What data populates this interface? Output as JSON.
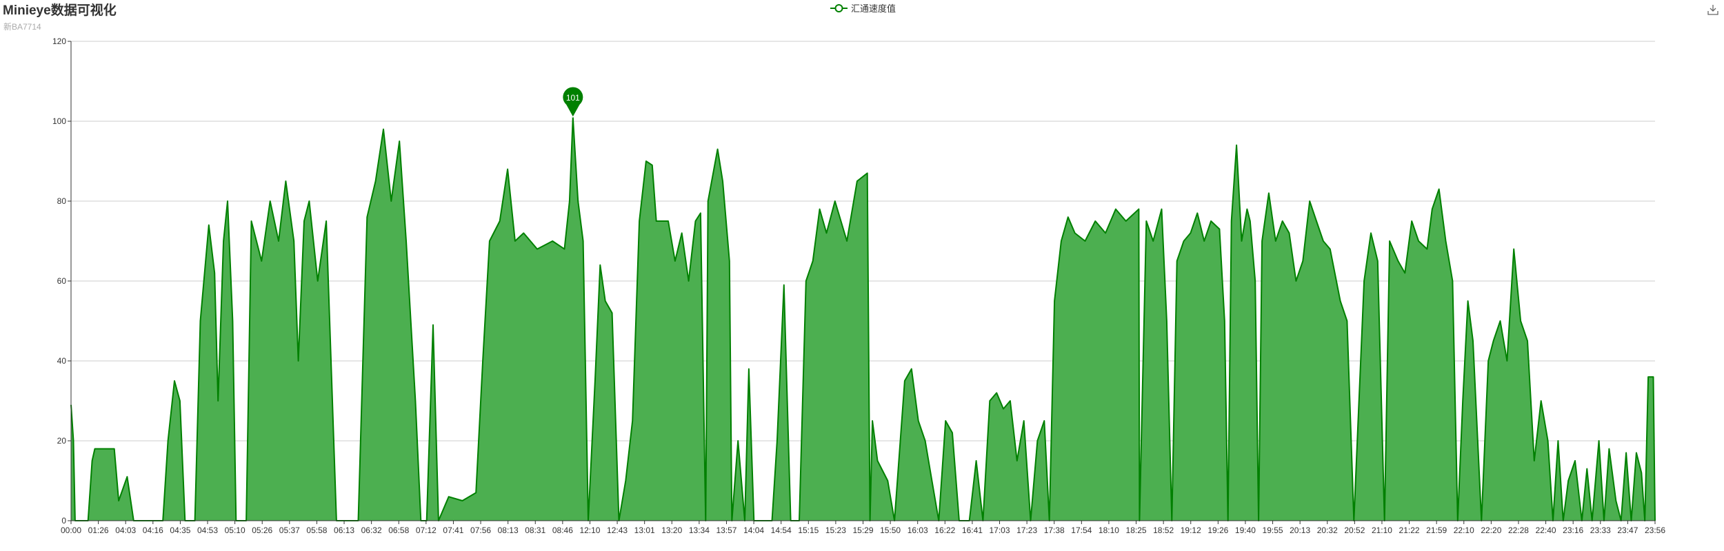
{
  "title": "Minieye数据可视化",
  "subtitle": "新BA7714",
  "legend": {
    "label": "汇通速度值"
  },
  "colors": {
    "line": "#008000",
    "area": "#4caf50",
    "axis": "#333333",
    "grid": "#cccccc"
  },
  "toolbox": {
    "icon": "download-icon"
  },
  "chart_data": {
    "type": "area",
    "series": [
      {
        "name": "汇通速度值",
        "max_marker": 101
      }
    ],
    "ylim": [
      0,
      120
    ],
    "yticks": [
      0,
      20,
      40,
      60,
      80,
      100,
      120
    ],
    "x_labels": [
      "00:00",
      "01:26",
      "04:03",
      "04:16",
      "04:35",
      "04:53",
      "05:10",
      "05:26",
      "05:37",
      "05:58",
      "06:13",
      "06:32",
      "06:58",
      "07:12",
      "07:41",
      "07:56",
      "08:13",
      "08:31",
      "08:46",
      "12:10",
      "12:43",
      "13:01",
      "13:20",
      "13:34",
      "13:57",
      "14:04",
      "14:54",
      "15:15",
      "15:23",
      "15:29",
      "15:50",
      "16:03",
      "16:22",
      "16:41",
      "17:03",
      "17:23",
      "17:38",
      "17:54",
      "18:10",
      "18:25",
      "18:52",
      "19:12",
      "19:26",
      "19:40",
      "19:55",
      "20:13",
      "20:32",
      "20:52",
      "21:10",
      "21:22",
      "21:59",
      "22:10",
      "22:20",
      "22:28",
      "22:40",
      "23:16",
      "23:33",
      "23:47",
      "23:56"
    ],
    "envelope": [
      [
        0,
        29
      ],
      [
        0.7,
        20
      ],
      [
        1.2,
        0
      ],
      [
        5,
        0
      ],
      [
        6.2,
        15
      ],
      [
        7,
        18
      ],
      [
        12.7,
        18
      ],
      [
        14,
        5
      ],
      [
        16.5,
        11
      ],
      [
        18.4,
        0
      ],
      [
        27,
        0
      ],
      [
        28.5,
        20
      ],
      [
        30.4,
        35
      ],
      [
        32,
        30
      ],
      [
        33.5,
        0
      ],
      [
        36.4,
        0
      ],
      [
        38,
        50
      ],
      [
        40.5,
        74
      ],
      [
        42.2,
        62
      ],
      [
        43.2,
        30
      ],
      [
        44.8,
        70
      ],
      [
        46,
        80
      ],
      [
        47.5,
        50
      ],
      [
        48.5,
        0
      ],
      [
        51.5,
        0
      ],
      [
        53,
        75
      ],
      [
        56,
        65
      ],
      [
        58.5,
        80
      ],
      [
        61,
        70
      ],
      [
        63.1,
        85
      ],
      [
        65.5,
        70
      ],
      [
        66.8,
        40
      ],
      [
        68.5,
        75
      ],
      [
        70,
        80
      ],
      [
        72.5,
        60
      ],
      [
        75,
        75
      ],
      [
        78,
        0
      ],
      [
        84.4,
        0
      ],
      [
        87,
        76
      ],
      [
        89.5,
        85
      ],
      [
        91.8,
        98
      ],
      [
        94.1,
        80
      ],
      [
        96.5,
        95
      ],
      [
        98.5,
        70
      ],
      [
        101.2,
        30
      ],
      [
        102.8,
        0
      ],
      [
        104.5,
        0
      ],
      [
        106.4,
        49
      ],
      [
        108,
        0
      ],
      [
        111,
        6
      ],
      [
        115,
        5
      ],
      [
        119,
        7
      ],
      [
        121,
        40
      ],
      [
        123,
        70
      ],
      [
        126,
        75
      ],
      [
        128.3,
        88
      ],
      [
        130.5,
        70
      ],
      [
        133,
        72
      ],
      [
        137,
        68
      ],
      [
        141.5,
        70
      ],
      [
        145,
        68
      ],
      [
        146.5,
        80
      ],
      [
        147.5,
        101
      ],
      [
        149,
        80
      ],
      [
        150.5,
        70
      ],
      [
        152,
        0
      ],
      [
        154,
        35
      ],
      [
        155.5,
        64
      ],
      [
        157,
        55
      ],
      [
        159,
        52
      ],
      [
        161,
        0
      ],
      [
        163,
        10
      ],
      [
        165,
        25
      ],
      [
        167,
        75
      ],
      [
        169,
        90
      ],
      [
        170.8,
        89
      ],
      [
        172,
        75
      ],
      [
        175.5,
        75
      ],
      [
        177.5,
        65
      ],
      [
        179.5,
        72
      ],
      [
        181.5,
        60
      ],
      [
        183.5,
        75
      ],
      [
        185,
        77
      ],
      [
        186.5,
        0
      ],
      [
        187.2,
        80
      ],
      [
        190,
        93
      ],
      [
        191.5,
        85
      ],
      [
        193.5,
        65
      ],
      [
        194.2,
        0
      ],
      [
        196,
        20
      ],
      [
        198,
        0
      ],
      [
        199.2,
        38
      ],
      [
        200.7,
        0
      ],
      [
        206,
        0
      ],
      [
        207.5,
        20
      ],
      [
        209.5,
        59
      ],
      [
        211.5,
        0
      ],
      [
        214,
        0
      ],
      [
        216,
        60
      ],
      [
        218,
        65
      ],
      [
        220,
        78
      ],
      [
        222,
        72
      ],
      [
        224.5,
        80
      ],
      [
        228,
        70
      ],
      [
        231,
        85
      ],
      [
        234,
        87
      ],
      [
        234.8,
        0
      ],
      [
        235.5,
        25
      ],
      [
        237,
        15
      ],
      [
        240,
        10
      ],
      [
        242,
        0
      ],
      [
        245,
        35
      ],
      [
        247,
        38
      ],
      [
        249,
        25
      ],
      [
        251,
        20
      ],
      [
        253,
        10
      ],
      [
        255,
        0
      ],
      [
        257,
        25
      ],
      [
        259,
        22
      ],
      [
        261,
        0
      ],
      [
        264,
        0
      ],
      [
        266,
        15
      ],
      [
        268,
        0
      ],
      [
        270,
        30
      ],
      [
        272,
        32
      ],
      [
        274,
        28
      ],
      [
        276,
        30
      ],
      [
        278,
        15
      ],
      [
        280,
        25
      ],
      [
        282,
        0
      ],
      [
        284,
        20
      ],
      [
        286,
        25
      ],
      [
        287.5,
        0
      ],
      [
        289,
        55
      ],
      [
        291,
        70
      ],
      [
        293,
        76
      ],
      [
        295,
        72
      ],
      [
        298,
        70
      ],
      [
        301,
        75
      ],
      [
        304,
        72
      ],
      [
        307,
        78
      ],
      [
        310,
        75
      ],
      [
        313.8,
        78
      ],
      [
        314,
        0
      ],
      [
        316,
        75
      ],
      [
        318,
        70
      ],
      [
        320.5,
        78
      ],
      [
        322,
        50
      ],
      [
        323.5,
        0
      ],
      [
        325,
        65
      ],
      [
        327,
        70
      ],
      [
        329,
        72
      ],
      [
        331,
        77
      ],
      [
        333,
        70
      ],
      [
        335,
        75
      ],
      [
        337.5,
        73
      ],
      [
        339,
        50
      ],
      [
        340,
        0
      ],
      [
        341,
        75
      ],
      [
        342.5,
        94
      ],
      [
        344,
        70
      ],
      [
        345.6,
        78
      ],
      [
        346.5,
        75
      ],
      [
        348,
        60
      ],
      [
        349,
        0
      ],
      [
        350,
        70
      ],
      [
        352,
        82
      ],
      [
        354,
        70
      ],
      [
        356,
        75
      ],
      [
        358,
        72
      ],
      [
        360,
        60
      ],
      [
        362,
        65
      ],
      [
        364,
        80
      ],
      [
        366,
        75
      ],
      [
        368,
        70
      ],
      [
        370,
        68
      ],
      [
        373,
        55
      ],
      [
        375,
        50
      ],
      [
        377,
        0
      ],
      [
        380,
        60
      ],
      [
        382,
        72
      ],
      [
        384,
        65
      ],
      [
        386,
        0
      ],
      [
        387.5,
        70
      ],
      [
        390,
        65
      ],
      [
        392,
        62
      ],
      [
        394,
        75
      ],
      [
        396,
        70
      ],
      [
        398.5,
        68
      ],
      [
        400,
        78
      ],
      [
        402,
        83
      ],
      [
        404,
        70
      ],
      [
        406,
        60
      ],
      [
        407.5,
        0
      ],
      [
        409,
        30
      ],
      [
        410.5,
        55
      ],
      [
        412,
        45
      ],
      [
        414.5,
        0
      ],
      [
        416.5,
        40
      ],
      [
        418,
        45
      ],
      [
        420,
        50
      ],
      [
        422,
        40
      ],
      [
        424,
        68
      ],
      [
        426,
        50
      ],
      [
        428,
        45
      ],
      [
        430,
        15
      ],
      [
        432,
        30
      ],
      [
        434,
        20
      ],
      [
        435.5,
        0
      ],
      [
        437,
        20
      ],
      [
        438.5,
        0
      ],
      [
        440,
        10
      ],
      [
        442,
        15
      ],
      [
        444,
        0
      ],
      [
        445.5,
        13
      ],
      [
        447,
        0
      ],
      [
        449,
        20
      ],
      [
        450.5,
        0
      ],
      [
        452,
        18
      ],
      [
        454,
        5
      ],
      [
        455.5,
        0
      ],
      [
        457,
        17
      ],
      [
        458.5,
        0
      ],
      [
        460,
        17
      ],
      [
        461.5,
        12
      ],
      [
        462.5,
        0
      ],
      [
        463.5,
        36
      ],
      [
        465,
        36
      ],
      [
        465.5,
        0
      ]
    ]
  }
}
